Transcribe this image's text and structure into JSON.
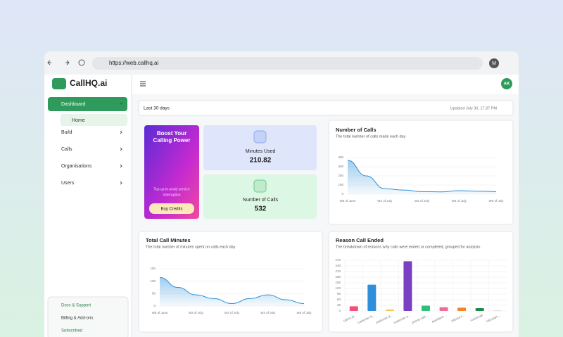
{
  "browser": {
    "url": "https://web.callhq.ai",
    "profile": "M"
  },
  "sidebar": {
    "logo": "CallHQ.ai",
    "nav": [
      "Dashboard",
      "Home",
      "Build",
      "Calls",
      "Organisations",
      "Users"
    ],
    "footer": [
      "Docs & Support",
      "Billing & Add-ons",
      "Subscribed"
    ]
  },
  "header": {
    "avatar": "AK",
    "range": "Last 30 days",
    "updated": "Updated July 30, 17:37 PM"
  },
  "promo": {
    "title_line1": "Boost Your",
    "title_line2": "Calling Power",
    "text_line1": "Top up to avoid service",
    "text_line2": "interruption",
    "button": "Buy Credits"
  },
  "stats": [
    {
      "label": "Minutes Used",
      "value": 210.82
    },
    {
      "label": "Number of Calls",
      "value": 532
    }
  ],
  "chart_data": [
    {
      "type": "line",
      "title": "Number of Calls",
      "subtitle": "The total number of calls made each day",
      "categories": [
        "W5 of June",
        null,
        "W2 of July",
        null,
        "W3 of July",
        null,
        "W4 of July",
        null,
        "W5 of July"
      ],
      "values": [
        370,
        200,
        60,
        45,
        28,
        25,
        38,
        33,
        28
      ],
      "color": "#2f8fd8",
      "ylim": [
        0,
        400
      ],
      "yticks": [
        0,
        100,
        200,
        300,
        400
      ],
      "grid": true
    },
    {
      "type": "line",
      "title": "Total Call Minutes",
      "subtitle": "The total number of minutes spent on calls each day",
      "categories": [
        "W5 of June",
        null,
        "W2 of July",
        null,
        "W3 of July",
        null,
        "W4 of July",
        null,
        "W5 of July"
      ],
      "values": [
        115,
        75,
        45,
        30,
        10,
        30,
        45,
        25,
        10
      ],
      "color": "#2f8fd8",
      "ylim": [
        0,
        150
      ],
      "yticks": [
        0,
        50,
        100,
        150
      ],
      "grid": true
    },
    {
      "type": "bar",
      "title": "Reason Call Ended",
      "subtitle": "The breakdown of reasons why calls were ended or completed, grouped for analysis.",
      "categories": [
        "call.in.pr...",
        "customer-b...",
        "customer-d...",
        "customer-e...",
        "phone-call-...",
        "assistant-...",
        "silence-t...",
        "voicemail",
        "call.start-..."
      ],
      "values": [
        25,
        140,
        8,
        265,
        28,
        20,
        18,
        15,
        3
      ],
      "colors": [
        "#f0507a",
        "#2f8fd8",
        "#f5c84a",
        "#7b3fc4",
        "#2dc07a",
        "#f06b9a",
        "#f5832a",
        "#1f8a4c",
        "#e8c8d8"
      ],
      "ylim": [
        0,
        270
      ],
      "yticks": [
        0,
        30,
        60,
        90,
        120,
        150,
        180,
        210,
        240,
        270
      ],
      "grid": true
    }
  ]
}
